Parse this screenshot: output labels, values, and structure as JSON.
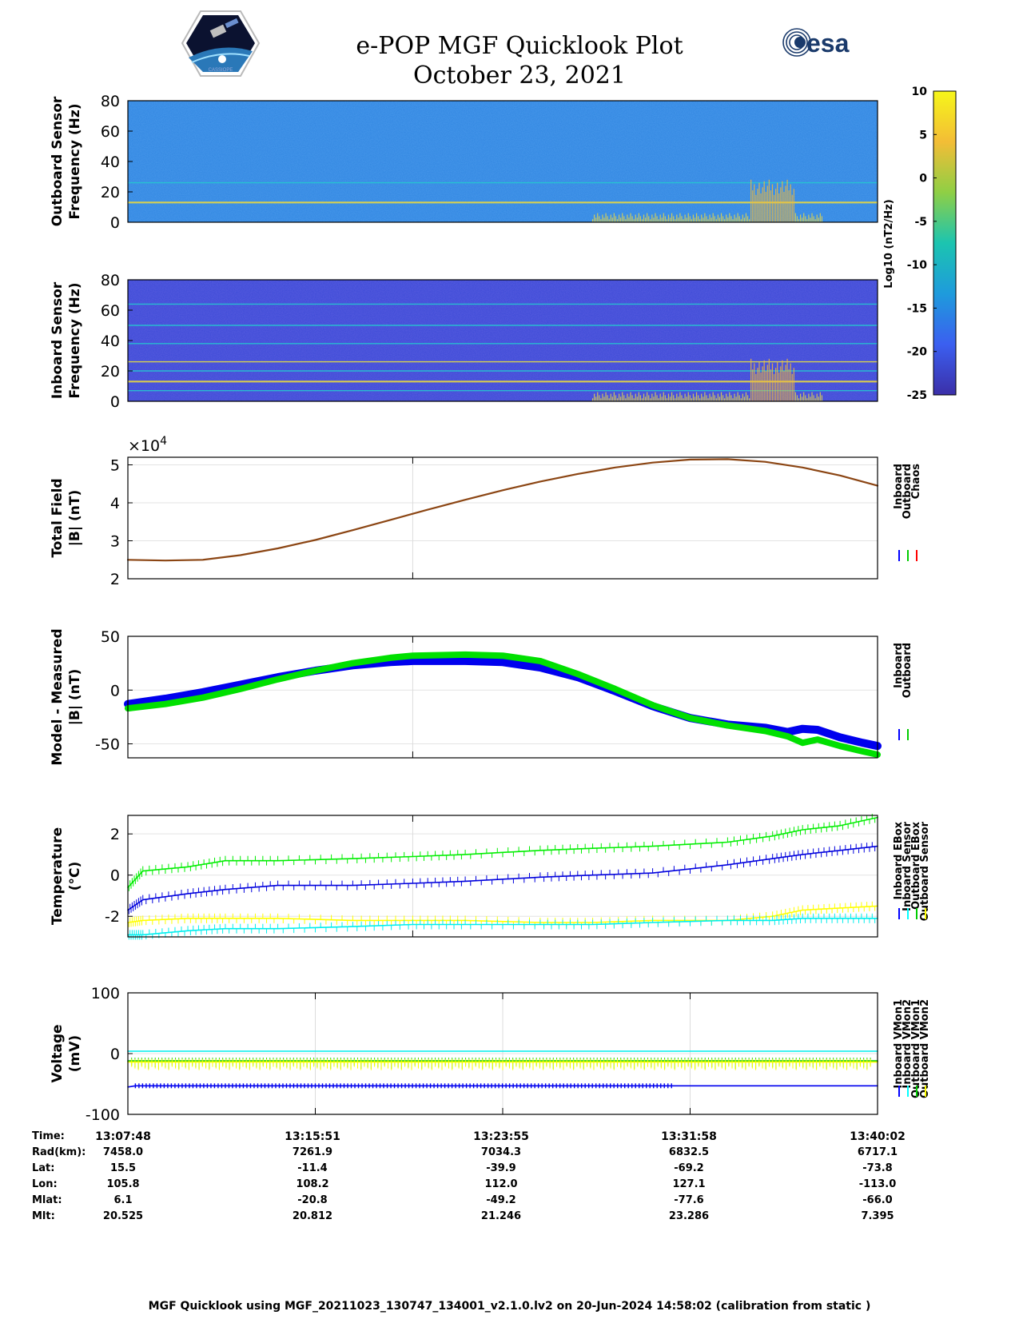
{
  "title": {
    "line1": "e-POP MGF Quicklook Plot",
    "line2": "October 23, 2021"
  },
  "logos": {
    "left": "cassiope-mission-logo",
    "right_text": "esa"
  },
  "colorbar": {
    "label": "Log10 (nT2/Hz)",
    "ticks": [
      "10",
      "5",
      "0",
      "-5",
      "-10",
      "-15",
      "-20",
      "-25"
    ],
    "range": [
      -25,
      10
    ],
    "colors": [
      "#3b2fa8",
      "#3b5ff0",
      "#1e9bdc",
      "#1cc4b0",
      "#8fcf45",
      "#f3bd36",
      "#f6f61a"
    ]
  },
  "chart_data": [
    {
      "type": "heatmap",
      "ylabel": [
        "Outboard Sensor",
        "Frequency (Hz)"
      ],
      "yticks": [
        "80",
        "60",
        "40",
        "20",
        "0"
      ],
      "ylim": [
        0,
        80
      ],
      "background_color": "#2f85e0",
      "lines_hz": [
        13,
        26
      ],
      "activity": "low-frequency bursts near the end of the interval"
    },
    {
      "type": "heatmap",
      "ylabel": [
        "Inboard Sensor",
        "Frequency (Hz)"
      ],
      "yticks": [
        "80",
        "60",
        "40",
        "20",
        "0"
      ],
      "ylim": [
        0,
        80
      ],
      "background_color": "#3a49d6",
      "lines_hz": [
        7,
        13,
        20,
        26,
        38,
        50,
        64
      ],
      "activity": "low-frequency bursts near the end of the interval"
    },
    {
      "type": "line",
      "ylabel": [
        "Total Field",
        "|B| (nT)"
      ],
      "exponent_label": "×10",
      "exponent_power": "4",
      "yticks": [
        "5",
        "4",
        "3",
        "2"
      ],
      "ylim": [
        2,
        5.2
      ],
      "legend": [
        "Inboard",
        "Outboard",
        "Chaos"
      ],
      "legend_colors": [
        "#0000ff",
        "#00cc00",
        "#ff0000"
      ],
      "x": [
        0,
        0.05,
        0.1,
        0.15,
        0.2,
        0.25,
        0.3,
        0.35,
        0.4,
        0.45,
        0.5,
        0.55,
        0.6,
        0.65,
        0.7,
        0.75,
        0.8,
        0.85,
        0.9,
        0.95,
        1.0
      ],
      "series": [
        {
          "name": "Chaos",
          "color": "#8b4513",
          "values": [
            2.5,
            2.48,
            2.5,
            2.62,
            2.8,
            3.02,
            3.28,
            3.55,
            3.82,
            4.08,
            4.33,
            4.56,
            4.76,
            4.93,
            5.06,
            5.14,
            5.15,
            5.08,
            4.93,
            4.72,
            4.45
          ]
        }
      ]
    },
    {
      "type": "line",
      "ylabel": [
        "Model - Measured",
        "|B| (nT)"
      ],
      "yticks": [
        "50",
        "0",
        "-50"
      ],
      "ylim": [
        -63,
        50
      ],
      "legend": [
        "Inboard",
        "Outboard"
      ],
      "legend_colors": [
        "#0000ff",
        "#00cc00"
      ],
      "x": [
        0,
        0.05,
        0.1,
        0.15,
        0.2,
        0.25,
        0.3,
        0.35,
        0.38,
        0.45,
        0.5,
        0.55,
        0.6,
        0.65,
        0.7,
        0.75,
        0.8,
        0.85,
        0.88,
        0.9,
        0.92,
        0.95,
        0.98,
        1.0
      ],
      "series": [
        {
          "name": "Inboard",
          "color": "#0000ee",
          "width": 10,
          "values": [
            -13,
            -8,
            -2,
            5,
            12,
            18,
            23,
            26,
            27,
            27,
            26,
            21,
            12,
            -1,
            -15,
            -26,
            -32,
            -35,
            -39,
            -36,
            -37,
            -44,
            -49,
            -52
          ]
        },
        {
          "name": "Outboard",
          "color": "#00e000",
          "width": 8,
          "values": [
            -17,
            -13,
            -7,
            1,
            10,
            18,
            25,
            30,
            32,
            33,
            32,
            27,
            15,
            1,
            -14,
            -26,
            -33,
            -38,
            -43,
            -49,
            -46,
            -52,
            -57,
            -60
          ]
        }
      ]
    },
    {
      "type": "line",
      "ylabel": [
        "Temperature",
        "(°C)"
      ],
      "yticks": [
        "2",
        "0",
        "-2"
      ],
      "ylim": [
        -3,
        2.9
      ],
      "legend": [
        "Inboard EBox",
        "Inboard Sensor",
        "Outboard EBox",
        "Outboard Sensor"
      ],
      "legend_colors": [
        "#0000ff",
        "#00ffff",
        "#00cc00",
        "#ffff00"
      ],
      "x": [
        0,
        0.02,
        0.08,
        0.13,
        0.2,
        0.3,
        0.38,
        0.45,
        0.55,
        0.62,
        0.7,
        0.8,
        0.86,
        0.9,
        0.95,
        1.0
      ],
      "series": [
        {
          "name": "Outboard EBox",
          "color": "#00ee00",
          "values": [
            -0.6,
            0.2,
            0.4,
            0.7,
            0.7,
            0.8,
            0.9,
            1.0,
            1.2,
            1.3,
            1.4,
            1.6,
            1.9,
            2.2,
            2.4,
            2.8
          ]
        },
        {
          "name": "Inboard EBox",
          "color": "#0000dd",
          "values": [
            -1.7,
            -1.2,
            -0.9,
            -0.7,
            -0.5,
            -0.5,
            -0.4,
            -0.3,
            -0.1,
            0.0,
            0.1,
            0.5,
            0.8,
            1.0,
            1.2,
            1.4
          ]
        },
        {
          "name": "Outboard Sensor",
          "color": "#ffff00",
          "values": [
            -2.3,
            -2.2,
            -2.1,
            -2.1,
            -2.1,
            -2.2,
            -2.2,
            -2.2,
            -2.3,
            -2.3,
            -2.2,
            -2.2,
            -2.0,
            -1.7,
            -1.6,
            -1.5
          ]
        },
        {
          "name": "Inboard Sensor",
          "color": "#00eeee",
          "values": [
            -2.9,
            -2.9,
            -2.7,
            -2.6,
            -2.6,
            -2.5,
            -2.4,
            -2.4,
            -2.4,
            -2.4,
            -2.3,
            -2.2,
            -2.2,
            -2.1,
            -2.1,
            -2.1
          ]
        }
      ]
    },
    {
      "type": "line",
      "ylabel": [
        "Voltage",
        "(mV)"
      ],
      "yticks": [
        "100",
        "0",
        "-100"
      ],
      "ylim": [
        -100,
        100
      ],
      "legend": [
        "Inboard VMon1",
        "Inboard VMon2",
        "Outboard VMon1",
        "Outboard VMon2"
      ],
      "legend_colors": [
        "#0000ff",
        "#00ffff",
        "#00cc00",
        "#ffff00"
      ],
      "x": [
        0,
        0.01,
        1.0
      ],
      "series": [
        {
          "name": "Inboard VMon1",
          "color": "#0000ee",
          "values": [
            -55,
            -53,
            -53
          ]
        },
        {
          "name": "Inboard VMon2",
          "color": "#00eeee",
          "values": [
            4,
            4,
            4
          ]
        },
        {
          "name": "Outboard VMon1",
          "color": "#00cc00",
          "values": [
            -12,
            -12,
            -12
          ]
        },
        {
          "name": "Outboard VMon2",
          "color": "#ffff00",
          "values": [
            -14,
            -14,
            -14
          ]
        }
      ]
    }
  ],
  "ephemeris": {
    "labels": [
      "Time:",
      "Rad(km):",
      "Lat:",
      "Lon:",
      "Mlat:",
      "Mlt:"
    ],
    "columns": [
      [
        "13:07:48",
        "7458.0",
        "15.5",
        "105.8",
        "6.1",
        "20.525"
      ],
      [
        "13:15:51",
        "7261.9",
        "-11.4",
        "108.2",
        "-20.8",
        "20.812"
      ],
      [
        "13:23:55",
        "7034.3",
        "-39.9",
        "112.0",
        "-49.2",
        "21.246"
      ],
      [
        "13:31:58",
        "6832.5",
        "-69.2",
        "127.1",
        "-77.6",
        "23.286"
      ],
      [
        "13:40:02",
        "6717.1",
        "-73.8",
        "-113.0",
        "-66.0",
        "7.395"
      ]
    ]
  },
  "footer": "MGF Quicklook using MGF_20211023_130747_134001_v2.1.0.lv2 on 20-Jun-2024 14:58:02 (calibration from static )"
}
